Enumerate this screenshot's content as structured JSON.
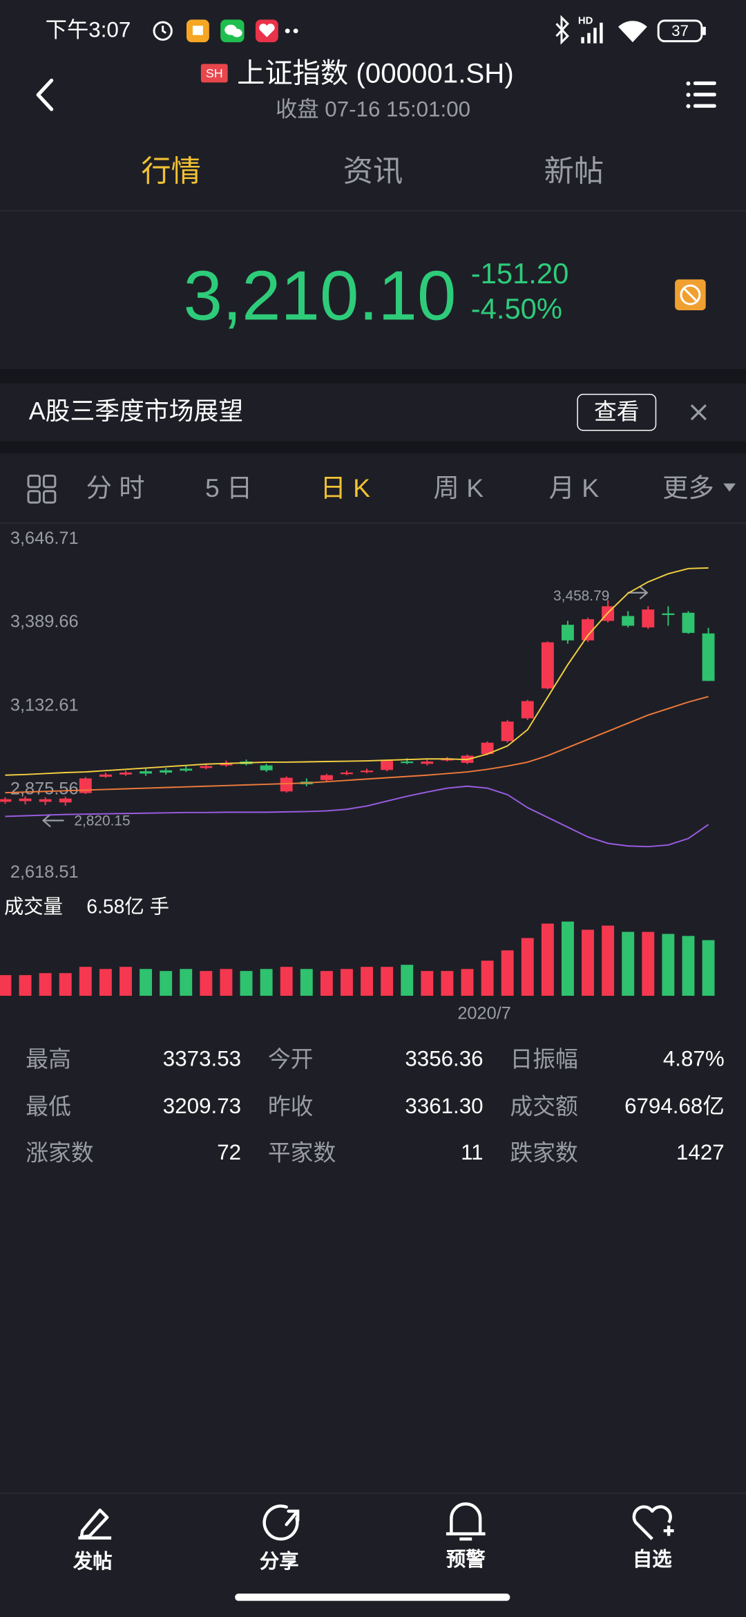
{
  "status_bar": {
    "time": "下午3:07",
    "network": "HD",
    "battery": "37"
  },
  "header": {
    "badge": "SH",
    "title": "上证指数 (000001.SH)",
    "subtitle": "收盘 07-16 15:01:00"
  },
  "tabs": [
    "行情",
    "资讯",
    "新帖"
  ],
  "quote": {
    "price": "3,210.10",
    "change": "-151.20",
    "change_pct": "-4.50%"
  },
  "banner": {
    "text": "A股三季度市场展望",
    "button": "查看"
  },
  "periods": [
    "分 时",
    "5 日",
    "日 K",
    "周 K",
    "月 K",
    "更多"
  ],
  "chart_data": {
    "type": "candlestick",
    "categories": [
      null,
      null,
      null,
      null,
      null,
      null,
      null,
      null,
      null,
      null,
      null,
      null,
      null,
      null,
      null,
      null,
      null,
      null,
      null,
      null,
      null,
      null,
      null,
      null,
      "2020/7",
      null,
      null,
      null,
      null,
      null,
      null,
      null,
      null,
      null,
      null,
      null
    ],
    "open": [
      2838,
      2840,
      2838,
      2836,
      2865,
      2915,
      2922,
      2932,
      2935,
      2940,
      2942,
      2950,
      2962,
      2950,
      2870,
      2900,
      2905,
      2925,
      2930,
      2936,
      2962,
      2955,
      2966,
      2958,
      2985,
      3025,
      3095,
      3187,
      3383,
      3335,
      3395,
      3410,
      3375,
      3418,
      3420,
      3356.36
    ],
    "high": [
      2852,
      2855,
      2852,
      2854,
      2914,
      2928,
      2934,
      2940,
      2942,
      2948,
      2955,
      2965,
      2968,
      2955,
      2916,
      2910,
      2924,
      2934,
      2940,
      2968,
      2972,
      2968,
      2976,
      2984,
      3024,
      3090,
      3152,
      3332,
      3395,
      3405,
      3458.79,
      3425,
      3440,
      3440,
      3425,
      3373.53
    ],
    "low": [
      2832,
      2830,
      2828,
      2826,
      2862,
      2912,
      2918,
      2918,
      2922,
      2930,
      2938,
      2946,
      2950,
      2930,
      2866,
      2886,
      2900,
      2920,
      2926,
      2932,
      2954,
      2950,
      2962,
      2954,
      2982,
      3020,
      3090,
      3184,
      3325,
      3330,
      3390,
      3375,
      3370,
      3380,
      3355,
      3209.73
    ],
    "close": [
      2846,
      2848,
      2846,
      2848,
      2910,
      2922,
      2928,
      2925,
      2928,
      2934,
      2948,
      2958,
      2954,
      2935,
      2912,
      2892,
      2920,
      2928,
      2934,
      2964,
      2958,
      2962,
      2970,
      2980,
      3020,
      3085,
      3148,
      3329,
      3335,
      3400,
      3440,
      3380,
      3430,
      3413,
      3358,
      3210.1
    ],
    "up_color": "#f5384f",
    "down_color": "#2fc26f",
    "ylim": [
      2618.51,
      3646.71
    ],
    "yticks": [
      {
        "value": 3646.71,
        "label": "3,646.71"
      },
      {
        "value": 3389.66,
        "label": "3,389.66"
      },
      {
        "value": 3132.61,
        "label": "3,132.61"
      },
      {
        "value": 2875.56,
        "label": "2,875.56"
      },
      {
        "value": 2618.51,
        "label": "2,618.51"
      }
    ],
    "grid": false,
    "lines": [
      {
        "color": "#f5d142",
        "values": [
          2920,
          2922,
          2925,
          2928,
          2930,
          2934,
          2938,
          2942,
          2946,
          2950,
          2954,
          2956,
          2958,
          2960,
          2960,
          2961,
          2962,
          2963,
          2964,
          2966,
          2968,
          2970,
          2970,
          2968,
          2985,
          3010,
          3060,
          3160,
          3260,
          3350,
          3420,
          3480,
          3515,
          3540,
          3556,
          3558
        ]
      },
      {
        "color": "#f07a3a",
        "values": [
          2866,
          2868,
          2870,
          2872,
          2874,
          2876,
          2878,
          2880,
          2882,
          2884,
          2886,
          2888,
          2890,
          2892,
          2894,
          2896,
          2900,
          2904,
          2908,
          2912,
          2916,
          2920,
          2925,
          2930,
          2938,
          2948,
          2960,
          2980,
          3005,
          3030,
          3055,
          3080,
          3105,
          3125,
          3145,
          3162
        ]
      },
      {
        "color": "#9b5de5",
        "values": [
          2793,
          2795,
          2797,
          2799,
          2800,
          2801,
          2802,
          2803,
          2804,
          2805,
          2805,
          2806,
          2806,
          2806,
          2807,
          2808,
          2810,
          2815,
          2825,
          2840,
          2855,
          2868,
          2880,
          2886,
          2880,
          2860,
          2820,
          2790,
          2760,
          2730,
          2710,
          2702,
          2700,
          2705,
          2725,
          2768
        ]
      }
    ],
    "annotations": [
      "3,458.79",
      "2,820.15"
    ],
    "volume_title": "成交量",
    "volume_label": "6.58亿 手",
    "volume": [
      2.44,
      2.44,
      2.68,
      2.68,
      3.42,
      3.17,
      3.42,
      3.17,
      2.93,
      3.17,
      2.93,
      3.17,
      2.93,
      3.17,
      3.42,
      3.17,
      2.93,
      3.17,
      3.42,
      3.42,
      3.66,
      2.93,
      2.93,
      3.17,
      4.15,
      5.37,
      6.83,
      8.54,
      8.78,
      7.81,
      8.3,
      7.56,
      7.56,
      7.32,
      7.08,
      6.58
    ],
    "volume_ylim": [
      0,
      9
    ]
  },
  "stats": [
    [
      [
        "最高",
        "3373.53"
      ],
      [
        "今开",
        "3356.36"
      ],
      [
        "日振幅",
        "4.87%"
      ]
    ],
    [
      [
        "最低",
        "3209.73"
      ],
      [
        "昨收",
        "3361.30"
      ],
      [
        "成交额",
        "6794.68亿"
      ]
    ],
    [
      [
        "涨家数",
        "72"
      ],
      [
        "平家数",
        "11"
      ],
      [
        "跌家数",
        "1427"
      ]
    ]
  ],
  "nav": [
    "发帖",
    "分享",
    "预警",
    "自选"
  ]
}
